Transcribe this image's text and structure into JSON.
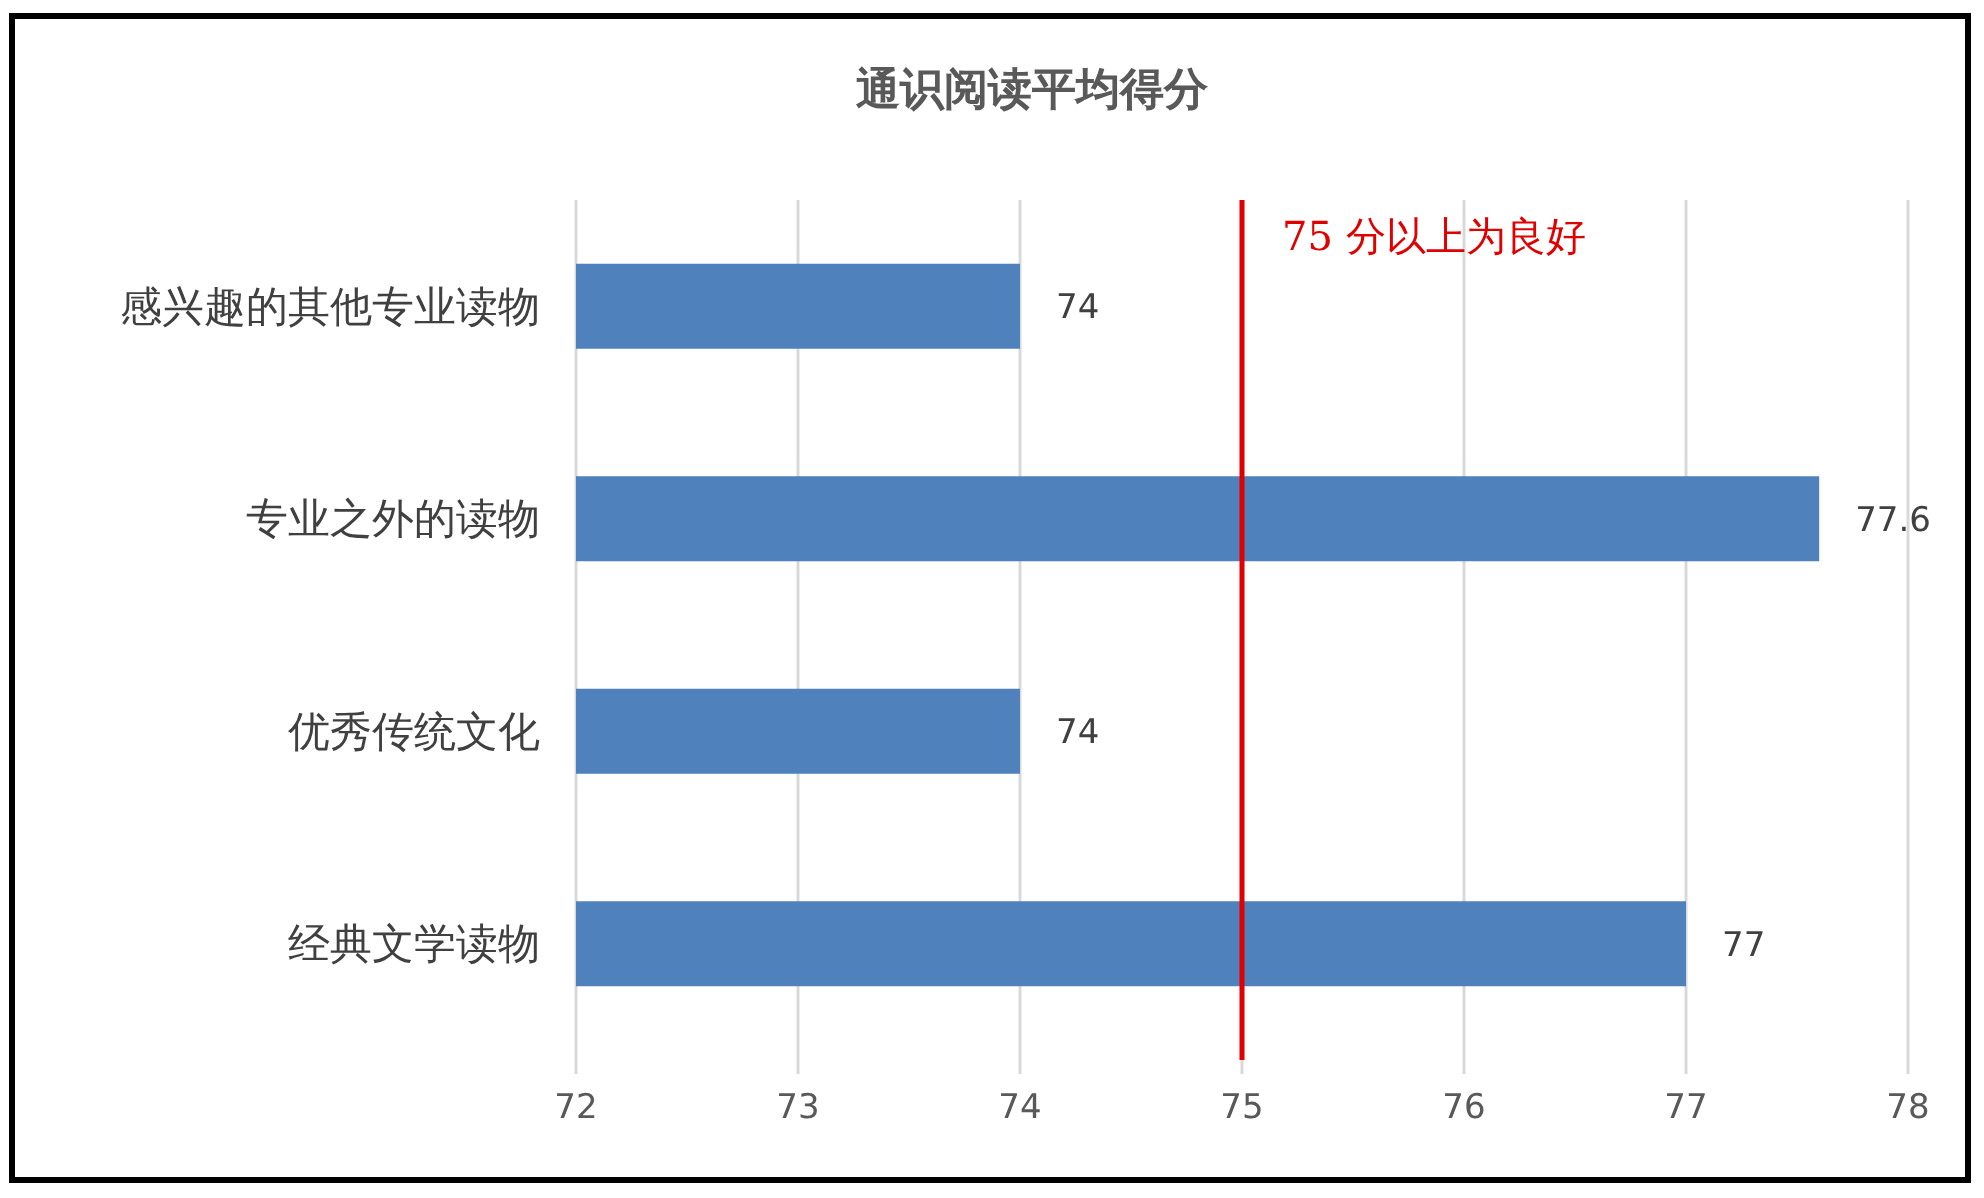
{
  "chart_data": {
    "type": "bar",
    "orientation": "horizontal",
    "title": "通识阅读平均得分",
    "categories": [
      "感兴趣的其他专业读物",
      "专业之外的读物",
      "优秀传统文化",
      "经典文学读物"
    ],
    "values": [
      74,
      77.6,
      74,
      77
    ],
    "color": "#4f81bd",
    "xlim": [
      72,
      78
    ],
    "xticks": [
      72,
      73,
      74,
      75,
      76,
      77,
      78
    ],
    "grid": "x",
    "data_labels": true,
    "ref_lines": [
      {
        "axis": "x",
        "value": 75,
        "label": "75 分以上为良好",
        "color": "#e00000"
      }
    ]
  }
}
